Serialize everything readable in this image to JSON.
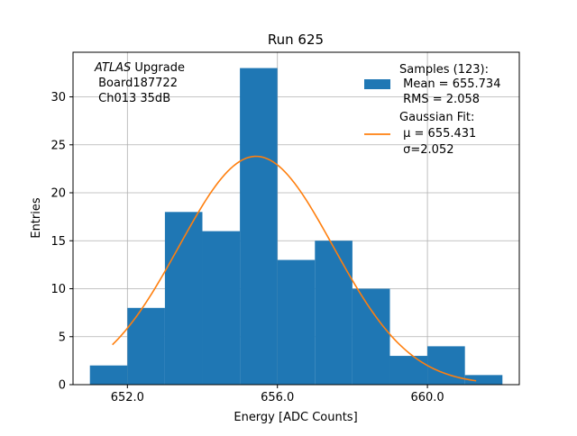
{
  "chart_data": {
    "type": "histogram",
    "title": "Run 625",
    "xlabel": "Energy [ADC Counts]",
    "ylabel": "Entries",
    "xlim": [
      650.55,
      662.45
    ],
    "ylim": [
      0,
      34.65
    ],
    "x_ticks": [
      652,
      656,
      660
    ],
    "x_tick_labels": [
      "652.0",
      "656.0",
      "660.0"
    ],
    "y_ticks": [
      0,
      5,
      10,
      15,
      20,
      25,
      30
    ],
    "y_tick_labels": [
      "0",
      "5",
      "10",
      "15",
      "20",
      "25",
      "30"
    ],
    "grid": true,
    "bins": [
      {
        "left": 651,
        "right": 652,
        "count": 2
      },
      {
        "left": 652,
        "right": 653,
        "count": 8
      },
      {
        "left": 653,
        "right": 654,
        "count": 18
      },
      {
        "left": 654,
        "right": 655,
        "count": 16
      },
      {
        "left": 655,
        "right": 656,
        "count": 33
      },
      {
        "left": 656,
        "right": 657,
        "count": 13
      },
      {
        "left": 657,
        "right": 658,
        "count": 15
      },
      {
        "left": 658,
        "right": 659,
        "count": 10
      },
      {
        "left": 659,
        "right": 660,
        "count": 3
      },
      {
        "left": 660,
        "right": 661,
        "count": 4
      },
      {
        "left": 661,
        "right": 662,
        "count": 1
      }
    ],
    "fit": {
      "type": "gaussian",
      "mu": 655.431,
      "sigma": 2.052,
      "amplitude": 23.8,
      "x_range": [
        651.6,
        661.3
      ]
    },
    "colors": {
      "bars": "#1f77b4",
      "fit": "#ff7f0e",
      "grid": "#b0b0b0"
    },
    "annotation": {
      "line1_italic": "ATLAS",
      "line1_rest": " Upgrade",
      "line2": " Board187722",
      "line3": " Ch013 35dB"
    },
    "legend": {
      "placement": "upper right",
      "samples_line1": "Samples (123):",
      "samples_line2": " Mean = 655.734",
      "samples_line3": " RMS = 2.058",
      "fit_line1": "Gaussian Fit:",
      "fit_line2": " μ = 655.431",
      "fit_line3": " σ=2.052"
    }
  }
}
